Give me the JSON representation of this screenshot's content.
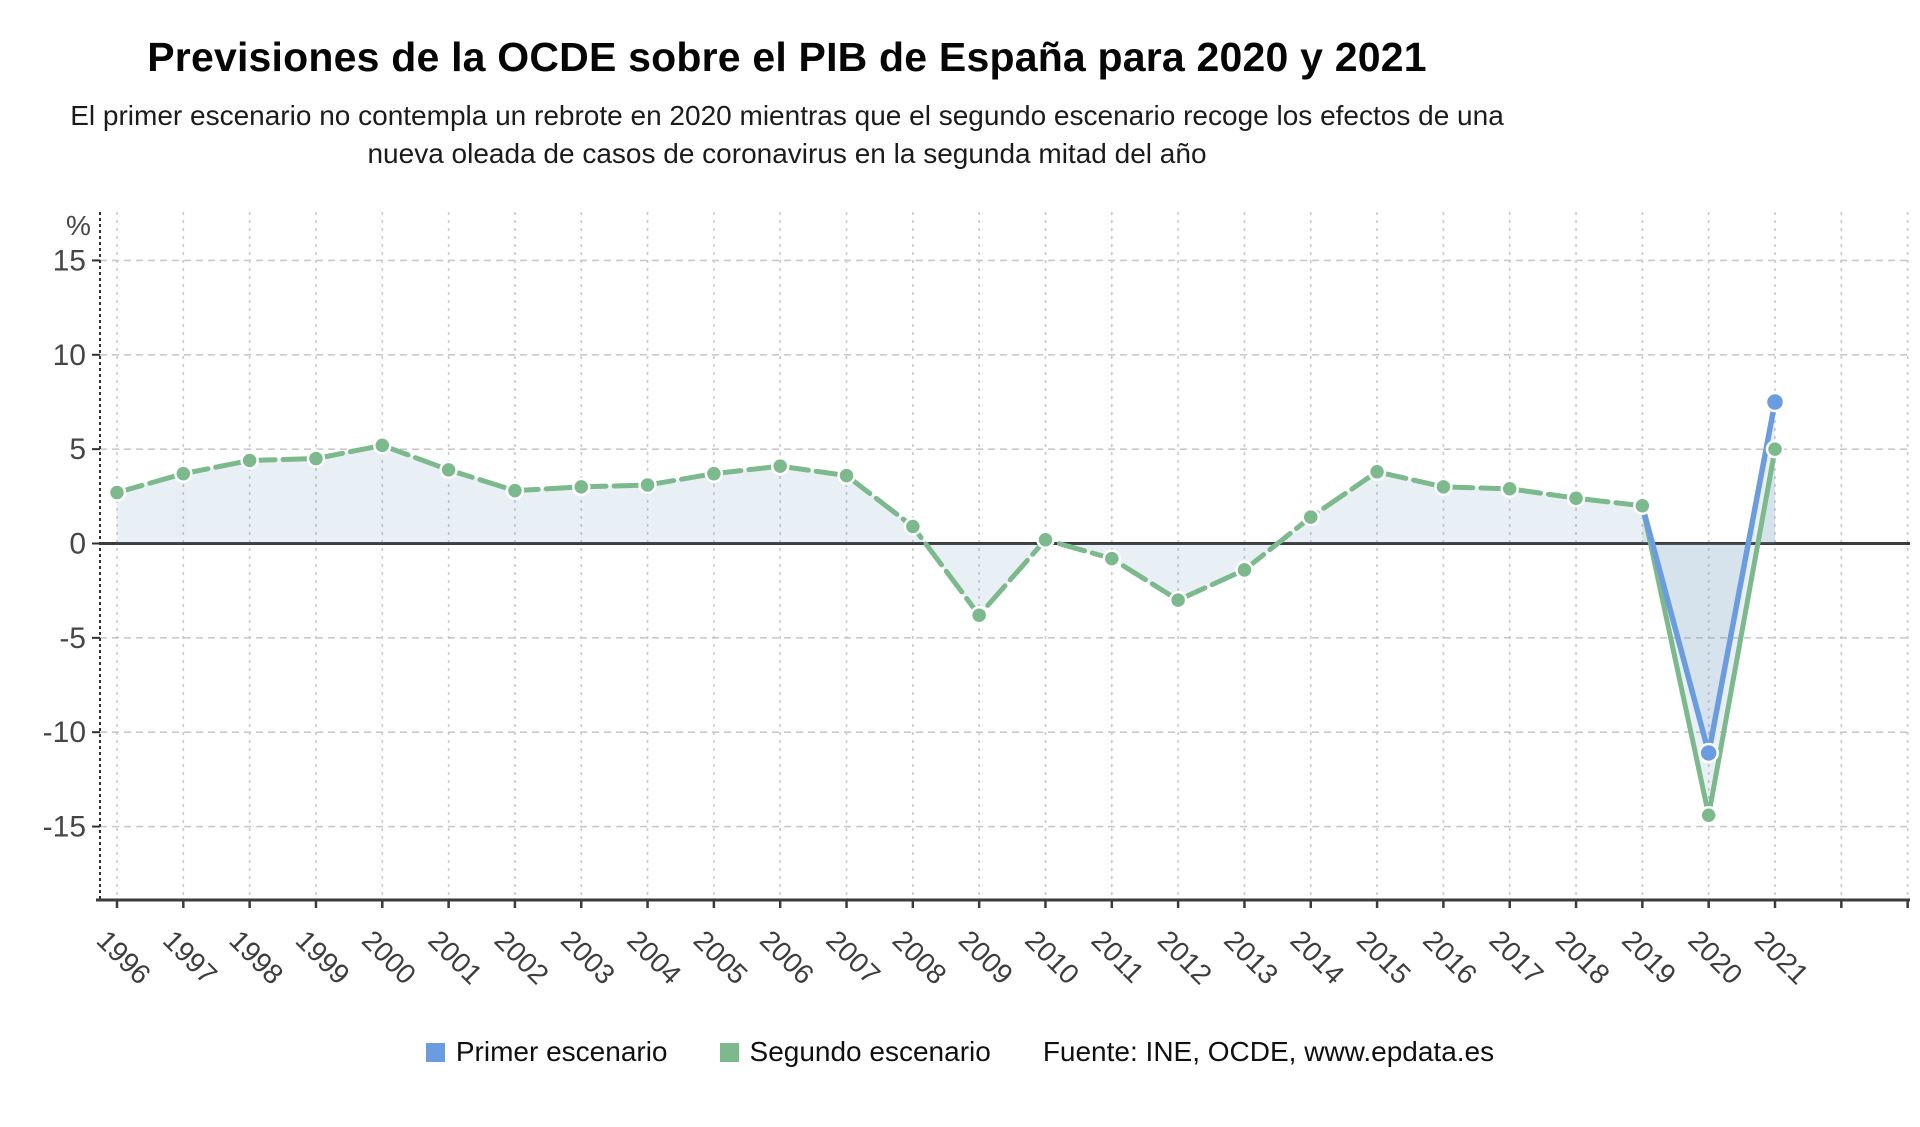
{
  "header": {
    "title": "Previsiones de la OCDE sobre el PIB de España para 2020 y 2021",
    "subtitle": "El primer escenario no contempla un rebrote en 2020 mientras que el segundo escenario recoge los efectos de una nueva oleada de casos de coronavirus en la segunda mitad del año"
  },
  "chart_data": {
    "type": "line",
    "title": "Previsiones de la OCDE sobre el PIB de España para 2020 y 2021",
    "subtitle": "El primer escenario no contempla un rebrote en 2020 mientras que el segundo escenario recoge los efectos de una nueva oleada de casos de coronavirus en la segunda mitad del año",
    "unit_label": "%",
    "x": [
      1996,
      1997,
      1998,
      1999,
      2000,
      2001,
      2002,
      2003,
      2004,
      2005,
      2006,
      2007,
      2008,
      2009,
      2010,
      2011,
      2012,
      2013,
      2014,
      2015,
      2016,
      2017,
      2018,
      2019,
      2020,
      2021
    ],
    "series": [
      {
        "name": "Primer escenario",
        "color": "#6C9CE0",
        "style": "solid",
        "x": [
          2019,
          2020,
          2021
        ],
        "values": [
          2.0,
          -11.1,
          7.5
        ],
        "marker_years": [
          2020,
          2021
        ]
      },
      {
        "name": "Segundo escenario",
        "color": "#7CB98C",
        "style": "dashed-history-solid-forecast",
        "solid_from": 2019,
        "x": [
          1996,
          1997,
          1998,
          1999,
          2000,
          2001,
          2002,
          2003,
          2004,
          2005,
          2006,
          2007,
          2008,
          2009,
          2010,
          2011,
          2012,
          2013,
          2014,
          2015,
          2016,
          2017,
          2018,
          2019,
          2020,
          2021
        ],
        "values": [
          2.7,
          3.7,
          4.4,
          4.5,
          5.2,
          3.9,
          2.8,
          3.0,
          3.1,
          3.7,
          4.1,
          3.6,
          0.9,
          -3.8,
          0.2,
          -0.8,
          -3.0,
          -1.4,
          1.4,
          3.8,
          3.0,
          2.9,
          2.4,
          2.0,
          -14.4,
          5.0
        ]
      }
    ],
    "ylim": [
      -15,
      15
    ],
    "yticks": [
      15,
      10,
      5,
      0,
      -5,
      -10,
      -15
    ],
    "grid": "dashed",
    "legend_position": "bottom",
    "source": "Fuente: INE, OCDE, www.epdata.es",
    "area_fill": "rgba(110,152,190,0.15)",
    "zero_line_color": "#3b3b3b"
  },
  "legend": {
    "items": [
      {
        "label": "Primer escenario",
        "color": "#6C9CE0"
      },
      {
        "label": "Segundo escenario",
        "color": "#7CB98C"
      }
    ],
    "source": "Fuente: INE, OCDE, www.epdata.es"
  }
}
